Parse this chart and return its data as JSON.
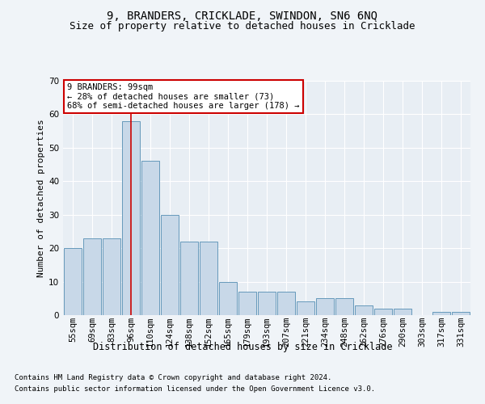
{
  "title": "9, BRANDERS, CRICKLADE, SWINDON, SN6 6NQ",
  "subtitle": "Size of property relative to detached houses in Cricklade",
  "xlabel": "Distribution of detached houses by size in Cricklade",
  "ylabel": "Number of detached properties",
  "categories": [
    "55sqm",
    "69sqm",
    "83sqm",
    "96sqm",
    "110sqm",
    "124sqm",
    "138sqm",
    "152sqm",
    "165sqm",
    "179sqm",
    "193sqm",
    "207sqm",
    "221sqm",
    "234sqm",
    "248sqm",
    "262sqm",
    "276sqm",
    "290sqm",
    "303sqm",
    "317sqm",
    "331sqm"
  ],
  "values": [
    20,
    23,
    23,
    58,
    46,
    30,
    22,
    22,
    10,
    7,
    7,
    7,
    4,
    5,
    5,
    3,
    2,
    2,
    0,
    1,
    1
  ],
  "highlight_index": 3,
  "bar_color": "#c8d8e8",
  "bar_edge_color": "#6699bb",
  "highlight_line_color": "#cc0000",
  "annotation_box_color": "#ffffff",
  "annotation_border_color": "#cc0000",
  "annotation_text": "9 BRANDERS: 99sqm\n← 28% of detached houses are smaller (73)\n68% of semi-detached houses are larger (178) →",
  "annotation_fontsize": 7.5,
  "ylim": [
    0,
    70
  ],
  "yticks": [
    0,
    10,
    20,
    30,
    40,
    50,
    60,
    70
  ],
  "title_fontsize": 10,
  "subtitle_fontsize": 9,
  "xlabel_fontsize": 8.5,
  "ylabel_fontsize": 8,
  "tick_fontsize": 7.5,
  "footer_line1": "Contains HM Land Registry data © Crown copyright and database right 2024.",
  "footer_line2": "Contains public sector information licensed under the Open Government Licence v3.0.",
  "footer_fontsize": 6.5,
  "bg_color": "#f0f4f8",
  "plot_bg_color": "#e8eef4",
  "grid_color": "#ffffff"
}
